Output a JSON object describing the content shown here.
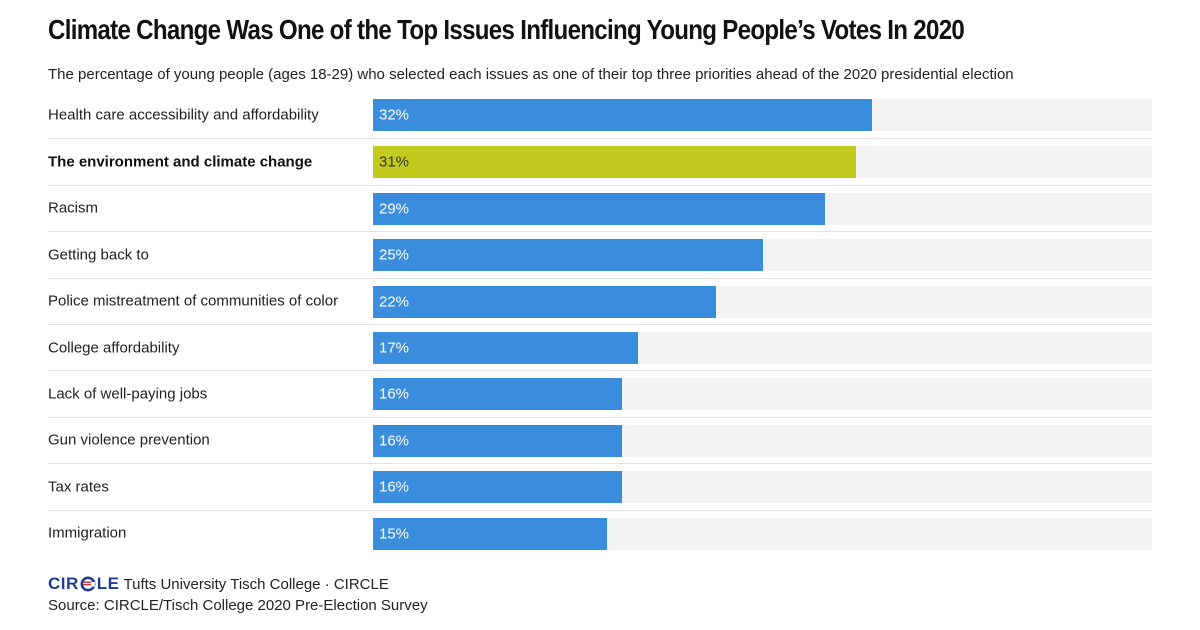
{
  "title": "Climate Change Was One of the Top Issues Influencing Young People’s Votes In 2020",
  "subtitle": "The percentage of young people (ages 18-29) who selected each issues as one of their top three priorities ahead of the 2020 presidential election",
  "colors": {
    "bar": "#3a8ddc",
    "highlight_bar": "#c3cb1e",
    "track": "#f2f2f2",
    "logo": "#1d3f8f",
    "logo_accent": "#d32f2f"
  },
  "chart_data": {
    "type": "bar",
    "orientation": "horizontal",
    "title": "Climate Change Was One of the Top Issues Influencing Young People’s Votes In 2020",
    "subtitle": "The percentage of young people (ages 18-29) who selected each issues as one of their top three priorities ahead of the 2020 presidential election",
    "categories": [
      "Health care accessibility and affordability",
      "The environment and climate change",
      "Racism",
      "Getting back to",
      "Police mistreatment of communities of color",
      "College affordability",
      "Lack of well-paying jobs",
      "Gun violence prevention",
      "Tax rates",
      "Immigration"
    ],
    "values": [
      32,
      31,
      29,
      25,
      22,
      17,
      16,
      16,
      16,
      15
    ],
    "value_labels": [
      "32%",
      "31%",
      "29%",
      "25%",
      "22%",
      "17%",
      "16%",
      "16%",
      "16%",
      "15%"
    ],
    "highlight_index": 1,
    "unit": "%",
    "xlim": [
      0,
      50
    ],
    "grid": false,
    "legend": "none"
  },
  "footer": {
    "logo_left": "CIR",
    "logo_mark": "C",
    "logo_right": "LE",
    "credit": "Tufts University Tisch College · CIRCLE",
    "source": "Source: CIRCLE/Tisch College 2020 Pre-Election Survey"
  }
}
